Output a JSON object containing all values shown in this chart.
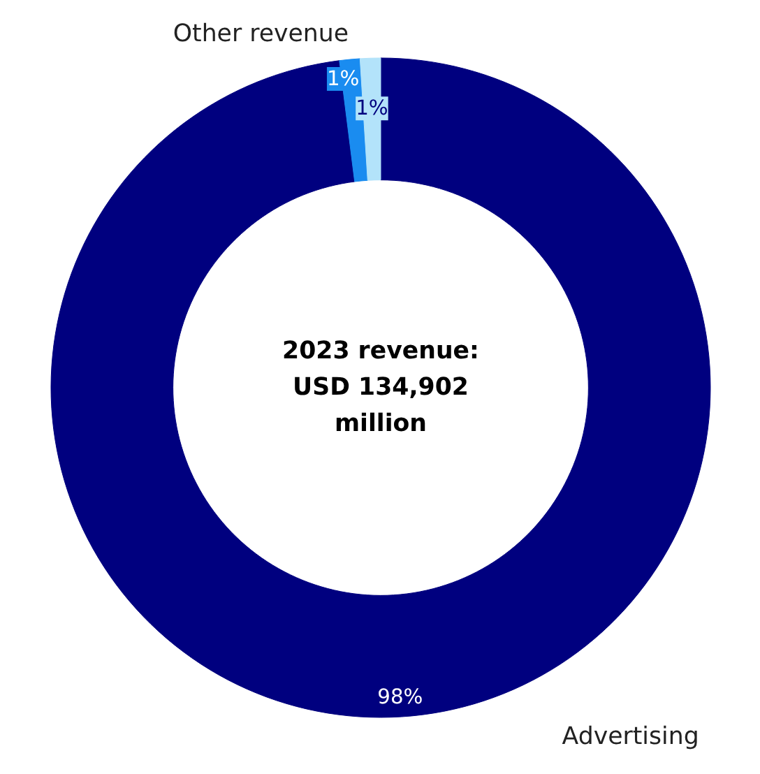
{
  "chart_data": {
    "type": "donut",
    "categories": [
      "Advertising",
      "Other revenue",
      null
    ],
    "values": [
      98,
      1,
      1
    ],
    "colors": [
      "#00007f",
      "#1a8cf0",
      "#b3e3fa"
    ],
    "value_labels": [
      "98%",
      "1%",
      "1%"
    ],
    "annotations": [
      "2023 revenue:\nUSD 134,902\nmillion"
    ]
  }
}
